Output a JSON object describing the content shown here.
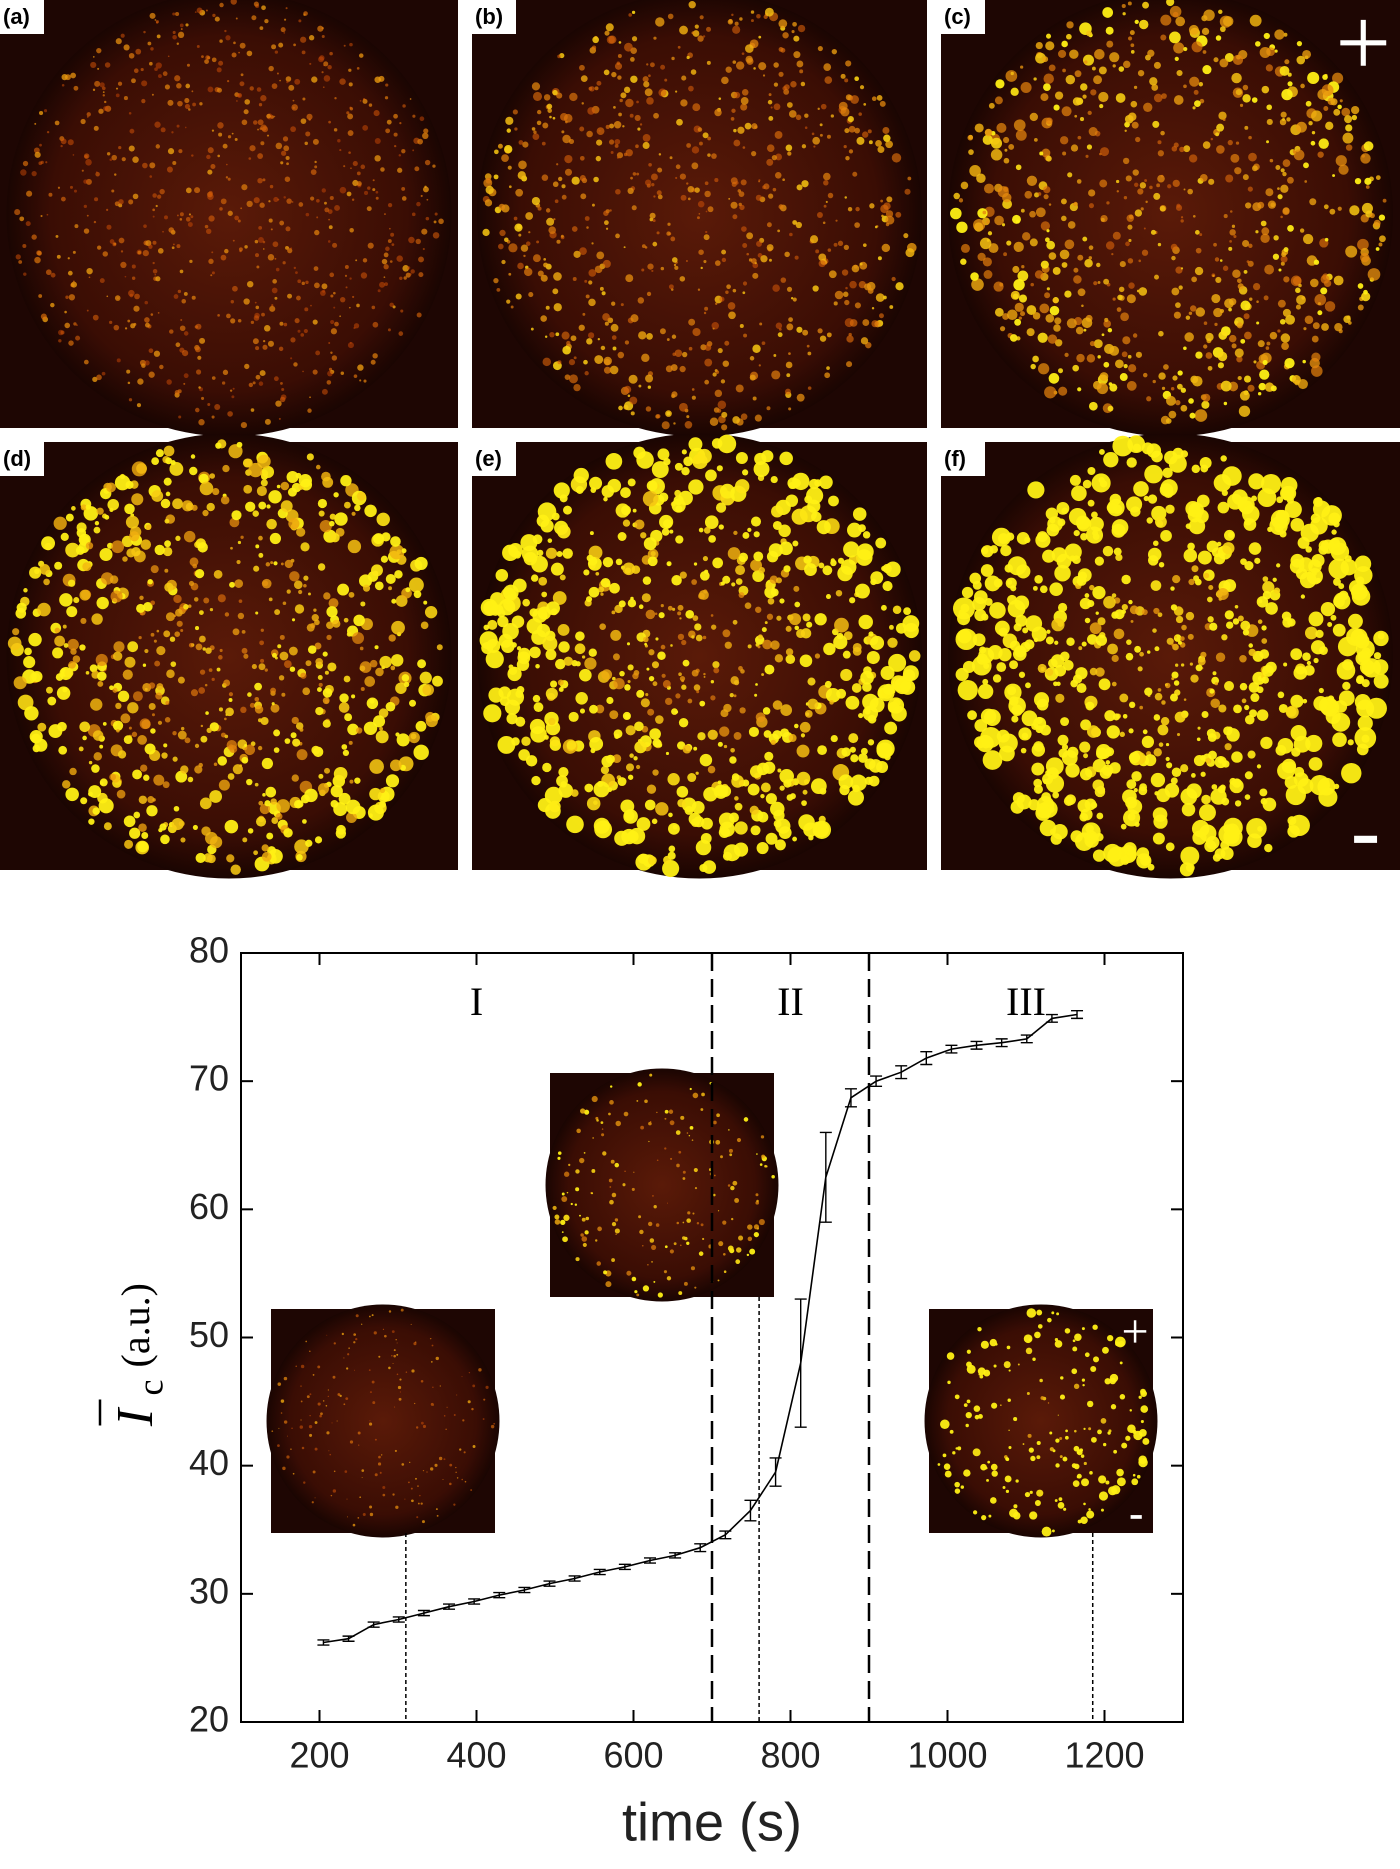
{
  "panels": {
    "labels": [
      "(a)",
      "(b)",
      "(c)",
      "(d)",
      "(e)",
      "(f)"
    ]
  },
  "chart_data": {
    "type": "line",
    "xlabel": "time (s)",
    "ylabel_symbol": "I",
    "ylabel_subscript": "c",
    "ylabel_unit": "(a.u.)",
    "region_labels": [
      "I",
      "II",
      "III"
    ],
    "phase_boundaries": [
      700,
      900
    ],
    "inset_times": [
      310,
      760,
      1185
    ],
    "x": [
      205,
      237,
      269,
      301,
      333,
      365,
      397,
      429,
      461,
      493,
      525,
      557,
      589,
      621,
      653,
      685,
      717,
      749,
      781,
      813,
      845,
      877,
      909,
      941,
      973,
      1005,
      1037,
      1069,
      1101,
      1133,
      1165
    ],
    "values": [
      26.2,
      26.5,
      27.6,
      28.0,
      28.5,
      29.0,
      29.4,
      29.9,
      30.3,
      30.8,
      31.2,
      31.7,
      32.1,
      32.6,
      33.0,
      33.6,
      34.6,
      36.5,
      39.5,
      48.0,
      62.5,
      68.7,
      70.0,
      70.7,
      71.8,
      72.5,
      72.8,
      73.0,
      73.3,
      74.9,
      75.2
    ],
    "errors": [
      0.2,
      0.2,
      0.2,
      0.2,
      0.2,
      0.2,
      0.2,
      0.2,
      0.2,
      0.2,
      0.2,
      0.2,
      0.2,
      0.2,
      0.2,
      0.3,
      0.3,
      0.8,
      1.1,
      5.0,
      3.5,
      0.7,
      0.4,
      0.5,
      0.5,
      0.3,
      0.3,
      0.3,
      0.3,
      0.3,
      0.3
    ],
    "color": "#000000",
    "xlim": [
      100,
      1300
    ],
    "xticks": [
      200,
      400,
      600,
      800,
      1000,
      1200
    ],
    "ylim": [
      20,
      80
    ],
    "yticks": [
      20,
      30,
      40,
      50,
      60,
      70,
      80
    ]
  }
}
